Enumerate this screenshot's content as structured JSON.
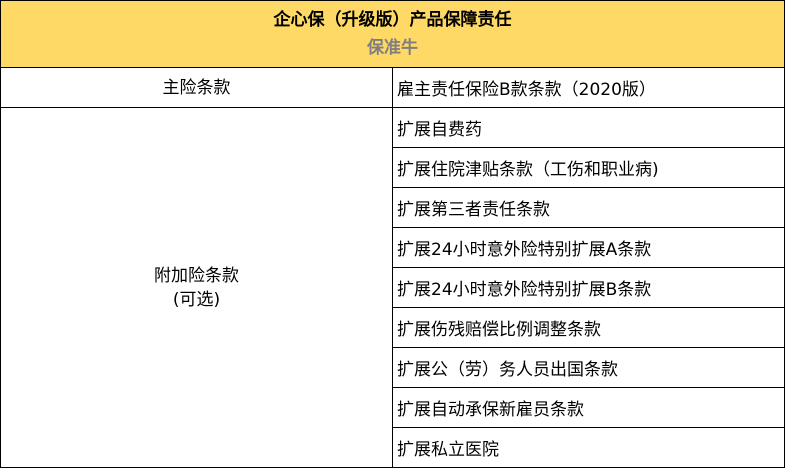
{
  "header": {
    "title": "企心保（升级版）产品保障责任",
    "subtitle": "保准牛",
    "background": "#FFD966"
  },
  "main_clause": {
    "label": "主险条款",
    "value": "雇主责任保险B款条款（2020版）"
  },
  "additional": {
    "label_line1": "附加险条款",
    "label_line2": "(可选)",
    "items": [
      "扩展自费药",
      "扩展住院津贴条款（工伤和职业病)",
      "扩展第三者责任条款",
      "扩展24小时意外险特别扩展A条款",
      "扩展24小时意外险特别扩展B条款",
      "扩展伤残赔偿比例调整条款",
      "扩展公（劳）务人员出国条款",
      "扩展自动承保新雇员条款",
      "扩展私立医院"
    ]
  }
}
